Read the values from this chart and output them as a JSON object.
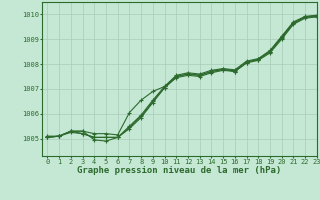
{
  "title": "Graphe pression niveau de la mer (hPa)",
  "xlim": [
    -0.5,
    23
  ],
  "ylim": [
    1004.3,
    1010.5
  ],
  "yticks": [
    1005,
    1006,
    1007,
    1008,
    1009,
    1010
  ],
  "xticks": [
    0,
    1,
    2,
    3,
    4,
    5,
    6,
    7,
    8,
    9,
    10,
    11,
    12,
    13,
    14,
    15,
    16,
    17,
    18,
    19,
    20,
    21,
    22,
    23
  ],
  "background_color": "#c5e8d5",
  "grid_color": "#a8ccb8",
  "line_color": "#2d6a2d",
  "series": [
    [
      1005.1,
      1005.1,
      1005.3,
      1005.3,
      1005.2,
      1005.2,
      1005.15,
      1006.05,
      1006.55,
      1006.9,
      1007.1,
      1007.5,
      1007.6,
      1007.55,
      1007.7,
      1007.8,
      1007.7,
      1008.05,
      1008.2,
      1008.5,
      1009.1,
      1009.65,
      1009.9,
      1009.95
    ],
    [
      1005.05,
      1005.1,
      1005.3,
      1005.2,
      1005.05,
      1005.05,
      1005.05,
      1005.4,
      1005.85,
      1006.45,
      1007.05,
      1007.45,
      1007.55,
      1007.5,
      1007.65,
      1007.75,
      1007.7,
      1008.05,
      1008.15,
      1008.45,
      1009.0,
      1009.6,
      1009.85,
      1009.9
    ],
    [
      1005.05,
      1005.1,
      1005.25,
      1005.2,
      1005.05,
      1005.05,
      1005.05,
      1005.45,
      1005.9,
      1006.5,
      1007.05,
      1007.5,
      1007.6,
      1007.55,
      1007.7,
      1007.78,
      1007.73,
      1008.08,
      1008.18,
      1008.5,
      1009.05,
      1009.65,
      1009.88,
      1009.92
    ],
    [
      1005.05,
      1005.1,
      1005.3,
      1005.3,
      1004.95,
      1004.9,
      1005.05,
      1005.5,
      1005.95,
      1006.55,
      1007.1,
      1007.55,
      1007.65,
      1007.6,
      1007.75,
      1007.82,
      1007.77,
      1008.12,
      1008.22,
      1008.55,
      1009.12,
      1009.7,
      1009.92,
      1009.97
    ]
  ],
  "marker": "+",
  "marker_size": 3.5,
  "marker_ew": 0.8,
  "line_width": 0.8,
  "title_fontsize": 6.5,
  "tick_fontsize": 5.0,
  "tick_color": "#2d6a2d",
  "axis_color": "#2d6a2d"
}
